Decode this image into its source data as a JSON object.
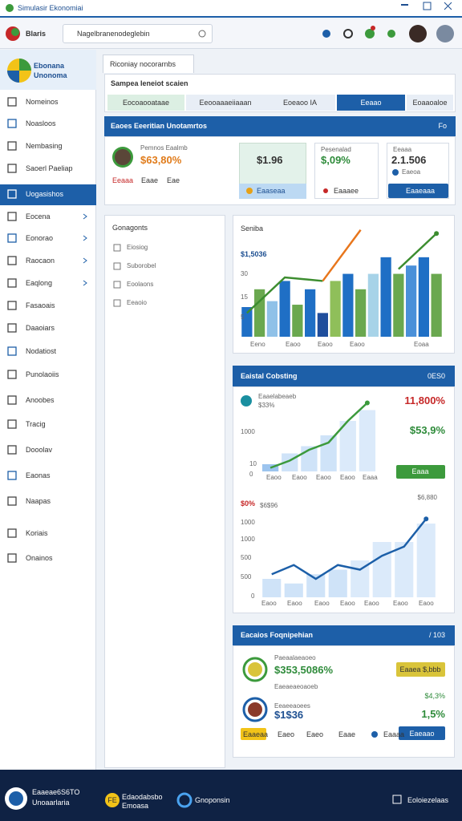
{
  "window": {
    "title": "Simulasir Ekonomiai"
  },
  "toolbar": {
    "brand": "Blaris",
    "search": "Nagelbranenodeglebin"
  },
  "sidebar": {
    "title": [
      "Ebonana",
      "Unonoma"
    ],
    "items": [
      "Nomeinos",
      "Noasloos",
      "Nembasing",
      "Saoerl Paeliap",
      "Uogasishos",
      "Eocena",
      "Eonorao",
      "Raocaon",
      "Eaqlong",
      "Fasaoais",
      "Daaoiars",
      "Nodatiost",
      "Punolaoiis",
      "Anoobes",
      "Tracig",
      "Dooolav",
      "Eaonas",
      "Naapas",
      "Koriais",
      "Onainos"
    ],
    "selected": 4
  },
  "tab": {
    "label": "Riconiay nocorarnbs"
  },
  "workspace": {
    "title": "Sampea Ieneiot scaien",
    "tabs": [
      "Eocoaooataae",
      "Eeooaaaeiiaaan",
      "Eoeaoo IA",
      "Eeaao",
      "Eoaaoaloe"
    ],
    "active_tab": 3
  },
  "summary": {
    "title": "Eaoes Eeeritian Unotamrtos",
    "badge": "Fo",
    "profile": {
      "name": "Pemnos Eaalmb",
      "value": "$63,80%",
      "tags": [
        "Eeaaa",
        "Eaae",
        "Eae"
      ]
    },
    "cards": [
      {
        "value": "$1.96",
        "footer": "Eaaseaa"
      },
      {
        "label": "Pesenalad",
        "value": "$,09%",
        "footer": "Eaaaee"
      },
      {
        "label": "Eeaaa",
        "value": "2.1.506",
        "note": "Eaeoa",
        "footer": "Eaaeaaa"
      }
    ]
  },
  "components": {
    "title": "Gonagonts",
    "items": [
      "Eiosiog",
      "Suborobel",
      "Eoolaons",
      "Eeaoio"
    ]
  },
  "charts": [
    {
      "title": "Seniba",
      "ylim": [
        0,
        100
      ],
      "ytick_labels": [
        "$1,5036",
        "30",
        "15",
        "5"
      ],
      "xtick_labels": [
        "Eeno",
        "Eaoo",
        "Eaoo",
        "Eaoo",
        "Eoaa"
      ],
      "bars": [
        25,
        40,
        30,
        47,
        27,
        40,
        20,
        47,
        53,
        40,
        53,
        67,
        53,
        60,
        67,
        53
      ],
      "colors": [
        "#1f6fc5",
        "#6aa84f",
        "#8fc1e8",
        "#1f6fc5",
        "#6aa84f",
        "#1f6fc5",
        "#1f4e9c",
        "#8fbf5a",
        "#1f6fc5",
        "#6aa84f",
        "#a7d3e8",
        "#1f6fc5",
        "#6aa84f",
        "#4a90d9",
        "#1f6fc5",
        "#6aa84f"
      ],
      "lines": [
        {
          "color": "#3c8d2f",
          "values": [
            20,
            50,
            47,
            null,
            57,
            87
          ]
        },
        {
          "color": "#e8761c",
          "values": [
            null,
            null,
            47,
            90,
            null,
            null
          ]
        }
      ]
    },
    {
      "ylim": [
        0,
        100
      ],
      "ytick_labels": [
        "1000",
        "10",
        "0"
      ],
      "xtick_labels": [
        "Eaoo",
        "Eaoo",
        "Eaoo",
        "Eaoo",
        "Eaaa"
      ],
      "bars": [
        10,
        25,
        35,
        50,
        70,
        85
      ],
      "colors": [
        "#9cc4ee",
        "#cfe3f8",
        "#cfe3f8",
        "#cfe3f8",
        "#dbeafa",
        "#dbeafa"
      ],
      "lines": [
        {
          "color": "#3c9a3c",
          "values": [
            5,
            15,
            30,
            40,
            70,
            95
          ]
        }
      ]
    },
    {
      "ylim": [
        0,
        100
      ],
      "ytick_labels": [
        "1000",
        "1000",
        "500",
        "500",
        "0"
      ],
      "xtick_labels": [
        "Eaoo",
        "Eaoo",
        "Eaoo",
        "Eaoo",
        "Eaoo",
        "Eaoo",
        "Eaoo"
      ],
      "bars": [
        20,
        15,
        25,
        30,
        40,
        60,
        60,
        80
      ],
      "colors": [
        "#cfe3f8",
        "#cfe3f8",
        "#cfe3f8",
        "#cfe3f8",
        "#dbeafa",
        "#dbeafa",
        "#dbeafa",
        "#dbeafa"
      ],
      "lines": [
        {
          "color": "#1c5fa8",
          "values": [
            25,
            35,
            20,
            35,
            30,
            45,
            55,
            85
          ]
        }
      ]
    }
  ],
  "digital": {
    "title": "Eaistal Cobsting",
    "badge": "0ES0",
    "top": {
      "label": "Eaaelabeaeb",
      "sub": "$33%",
      "value": "11,800%",
      "change": "$53,9%",
      "button": "Eaaa"
    },
    "bottom": {
      "label": "$0%",
      "sub": "$6$96",
      "value": "$6,880"
    }
  },
  "finance": {
    "title": "Eacaios Foqnipehian",
    "badge": "/ 103",
    "rows": [
      {
        "name": "Paeaalaeaoeo",
        "value": "$353,5086%",
        "note": "Eaeaeaeoaoeb",
        "tag": "Eaaea $,bbb",
        "change": "$4,3%"
      },
      {
        "name": "Eeaeeaoees",
        "value": "$1$36",
        "change": "1,5%"
      }
    ],
    "footer": [
      "Eaaeaa",
      "Eaeo",
      "Eaeo",
      "Eaae",
      "Eaaaa"
    ],
    "button": "Eaeaao"
  },
  "footer": {
    "brand": [
      "Eaaeae6S6TO",
      "Unoaarlaria"
    ],
    "badge": "FE",
    "section": [
      "Edaodabsbo",
      "Emoasa"
    ],
    "link": "Gnoponsin",
    "action": "Eoloiezelaas"
  }
}
